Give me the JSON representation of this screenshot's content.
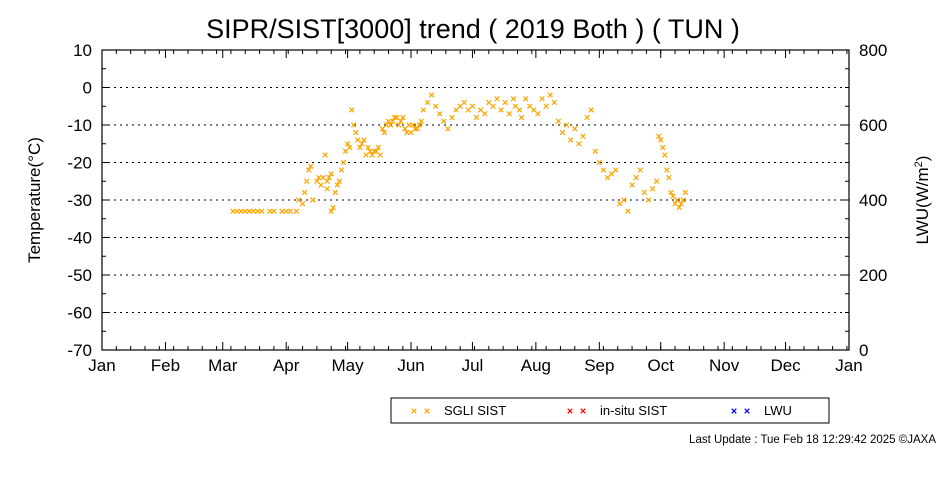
{
  "footer": "Last Update : Tue Feb 18 12:29:42 2025 ©JAXA",
  "chart_data": {
    "type": "scatter",
    "title": "SIPR/SIST[3000] trend ( 2019 Both ) ( TUN )",
    "ylabel": "Temperature(°C)",
    "y2label_prefix": "LWU(W/m",
    "y2label_sup": "2",
    "y2label_suffix": ")",
    "ylim": [
      -70,
      10
    ],
    "yticks": [
      "10",
      "0",
      "-10",
      "-20",
      "-30",
      "-40",
      "-50",
      "-60",
      "-70"
    ],
    "y2lim": [
      0,
      800
    ],
    "y2ticks": [
      "800",
      "600",
      "400",
      "200",
      "0"
    ],
    "xlim": [
      1,
      366
    ],
    "xticks": [
      "Jan",
      "Feb",
      "Mar",
      "Apr",
      "May",
      "Jun",
      "Jul",
      "Aug",
      "Sep",
      "Oct",
      "Nov",
      "Dec",
      "Jan"
    ],
    "xtick_days": [
      1,
      32,
      60,
      91,
      121,
      152,
      182,
      213,
      244,
      274,
      305,
      335,
      366
    ],
    "grid": "horizontal dotted",
    "legend_position": "bottom",
    "series": [
      {
        "name": "SGLI SIST",
        "color": "#ffa500",
        "axis": "left",
        "x": [
          65,
          67,
          69,
          71,
          73,
          75,
          77,
          79,
          83,
          85,
          89,
          91,
          93,
          96,
          97,
          99,
          100,
          101,
          102,
          103,
          104,
          104,
          106,
          107,
          108,
          109,
          110,
          111,
          111,
          112,
          113,
          113,
          114,
          115,
          116,
          117,
          118,
          119,
          120,
          121,
          122,
          123,
          124,
          125,
          126,
          127,
          128,
          129,
          130,
          131,
          132,
          133,
          134,
          135,
          136,
          137,
          138,
          139,
          140,
          141,
          142,
          143,
          144,
          145,
          146,
          147,
          148,
          149,
          150,
          151,
          152,
          153,
          154,
          155,
          156,
          157,
          158,
          160,
          162,
          164,
          166,
          168,
          170,
          172,
          174,
          176,
          178,
          180,
          182,
          184,
          186,
          188,
          190,
          192,
          194,
          196,
          198,
          200,
          202,
          203,
          205,
          206,
          208,
          210,
          212,
          214,
          216,
          218,
          220,
          222,
          224,
          226,
          228,
          230,
          232,
          234,
          236,
          238,
          240,
          242,
          244,
          246,
          248,
          250,
          252,
          254,
          256,
          258,
          260,
          262,
          264,
          266,
          268,
          270,
          272,
          273,
          274,
          275,
          276,
          277,
          278,
          279,
          280,
          281,
          282,
          283,
          284,
          285,
          286
        ],
        "y": [
          -33,
          -33,
          -33,
          -33,
          -33,
          -33,
          -33,
          -33,
          -33,
          -33,
          -33,
          -33,
          -33,
          -33,
          -30,
          -31,
          -28,
          -25,
          -22,
          -21,
          -30,
          -30,
          -25,
          -24,
          -26,
          -24,
          -18,
          -25,
          -27,
          -24,
          -23,
          -33,
          -32,
          -28,
          -26,
          -25,
          -22,
          -20,
          -17,
          -15,
          -16,
          -6,
          -10,
          -12,
          -14,
          -16,
          -15,
          -14,
          -18,
          -16,
          -17,
          -18,
          -17,
          -17,
          -16,
          -18,
          -11,
          -12,
          -10,
          -9,
          -10,
          -9,
          -8,
          -8,
          -10,
          -9,
          -8,
          -11,
          -12,
          -10,
          -12,
          -10,
          -11,
          -11,
          -10,
          -9,
          -6,
          -4,
          -2,
          -5,
          -7,
          -9,
          -11,
          -8,
          -6,
          -5,
          -4,
          -6,
          -5,
          -8,
          -6,
          -7,
          -4,
          -5,
          -3,
          -6,
          -4,
          -7,
          -3,
          -5,
          -6,
          -8,
          -3,
          -5,
          -6,
          -7,
          -3,
          -5,
          -2,
          -4,
          -9,
          -12,
          -10,
          -14,
          -11,
          -15,
          -13,
          -8,
          -6,
          -17,
          -20,
          -22,
          -24,
          -23,
          -22,
          -31,
          -30,
          -33,
          -26,
          -24,
          -22,
          -28,
          -30,
          -27,
          -25,
          -13,
          -14,
          -16,
          -18,
          -22,
          -24,
          -28,
          -29,
          -31,
          -30,
          -32,
          -31,
          -30,
          -28
        ]
      },
      {
        "name": "in-situ SIST",
        "color": "#ff0000",
        "axis": "left",
        "x": [],
        "y": []
      },
      {
        "name": "LWU",
        "color": "#0000ff",
        "axis": "right",
        "x": [],
        "y": []
      }
    ]
  }
}
